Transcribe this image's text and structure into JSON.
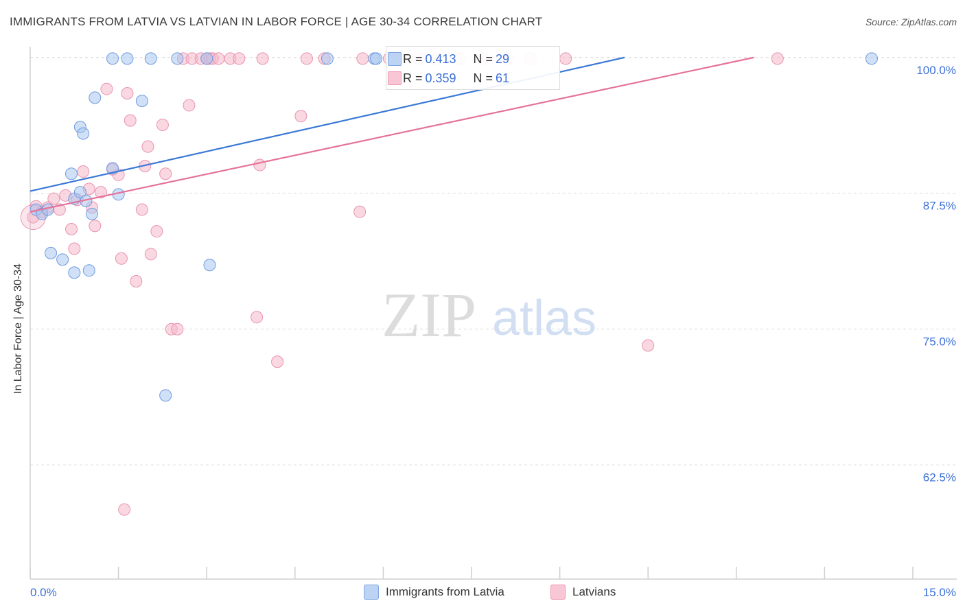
{
  "chart_data": {
    "type": "scatter",
    "title": "IMMIGRANTS FROM LATVIA VS LATVIAN IN LABOR FORCE | AGE 30-34 CORRELATION CHART",
    "source": "Source: ZipAtlas.com",
    "ylabel": "In Labor Force | Age 30-34",
    "xlim": [
      0,
      15
    ],
    "ylim": [
      52,
      101.5
    ],
    "x_tick_labels": {
      "min": "0.0%",
      "max": "15.0%"
    },
    "y_ticks": [
      {
        "value": 100,
        "label": "100.0%"
      },
      {
        "value": 87.5,
        "label": "87.5%"
      },
      {
        "value": 75,
        "label": "75.0%"
      },
      {
        "value": 62.5,
        "label": "62.5%"
      }
    ],
    "watermark": {
      "zip": "ZIP",
      "atlas": "atlas"
    },
    "colors": {
      "blue": "#3a78d6",
      "pink": "#e5729a",
      "blue_fill": "#aac6ef",
      "pink_fill": "#f5b8cb",
      "axis_label": "#3a6fd8"
    },
    "legend": {
      "position": "top-center",
      "entries": [
        {
          "r_label": "R = ",
          "r_value": "0.413",
          "n_label": "N = ",
          "n_value": "29"
        },
        {
          "r_label": "R = ",
          "r_value": "0.359",
          "n_label": "N = ",
          "n_value": "61"
        }
      ]
    },
    "series": [
      {
        "name": "Immigrants from Latvia",
        "color": "#3a78d6",
        "trend": {
          "x": [
            0,
            10.1
          ],
          "y": [
            87.7,
            100
          ]
        },
        "points": [
          [
            0.1,
            86.0
          ],
          [
            0.2,
            85.6
          ],
          [
            0.3,
            86.0
          ],
          [
            0.35,
            82.0
          ],
          [
            0.55,
            81.4
          ],
          [
            0.7,
            89.3
          ],
          [
            0.75,
            87.0
          ],
          [
            0.85,
            87.6
          ],
          [
            0.75,
            80.2
          ],
          [
            0.85,
            93.6
          ],
          [
            0.9,
            93.0
          ],
          [
            0.95,
            86.8
          ],
          [
            1.0,
            80.4
          ],
          [
            1.05,
            85.6
          ],
          [
            1.1,
            96.3
          ],
          [
            1.4,
            99.9
          ],
          [
            1.4,
            89.8
          ],
          [
            1.5,
            87.4
          ],
          [
            1.65,
            99.9
          ],
          [
            1.9,
            96.0
          ],
          [
            2.05,
            99.9
          ],
          [
            2.3,
            68.9
          ],
          [
            2.5,
            99.9
          ],
          [
            3.0,
            99.9
          ],
          [
            3.05,
            80.9
          ],
          [
            5.05,
            99.9
          ],
          [
            5.85,
            99.9
          ],
          [
            5.88,
            99.9
          ],
          [
            14.3,
            99.9
          ]
        ]
      },
      {
        "name": "Latvians",
        "color": "#e5729a",
        "trend": {
          "x": [
            0,
            12.3
          ],
          "y": [
            85.8,
            100
          ]
        },
        "points": [
          [
            0.05,
            85.3
          ],
          [
            0.1,
            86.3
          ],
          [
            0.2,
            85.8
          ],
          [
            0.3,
            86.2
          ],
          [
            0.4,
            87.0
          ],
          [
            0.5,
            86.0
          ],
          [
            0.6,
            87.3
          ],
          [
            0.7,
            84.2
          ],
          [
            0.75,
            82.4
          ],
          [
            0.8,
            86.9
          ],
          [
            0.9,
            89.5
          ],
          [
            1.0,
            87.9
          ],
          [
            1.05,
            86.2
          ],
          [
            1.1,
            84.5
          ],
          [
            1.2,
            87.6
          ],
          [
            1.3,
            97.1
          ],
          [
            1.4,
            89.7
          ],
          [
            1.5,
            89.2
          ],
          [
            1.55,
            81.5
          ],
          [
            1.6,
            58.4
          ],
          [
            1.65,
            96.7
          ],
          [
            1.7,
            94.2
          ],
          [
            1.8,
            79.4
          ],
          [
            1.9,
            86.0
          ],
          [
            1.95,
            90.0
          ],
          [
            2.0,
            91.8
          ],
          [
            2.05,
            81.9
          ],
          [
            2.15,
            84.0
          ],
          [
            2.25,
            93.8
          ],
          [
            2.3,
            89.3
          ],
          [
            2.4,
            75.0
          ],
          [
            2.5,
            75.0
          ],
          [
            2.6,
            99.9
          ],
          [
            2.7,
            95.6
          ],
          [
            2.75,
            99.9
          ],
          [
            2.9,
            99.9
          ],
          [
            3.0,
            99.9
          ],
          [
            3.05,
            99.9
          ],
          [
            3.1,
            99.9
          ],
          [
            3.2,
            99.9
          ],
          [
            3.4,
            99.9
          ],
          [
            3.55,
            99.9
          ],
          [
            3.95,
            99.9
          ],
          [
            3.9,
            90.1
          ],
          [
            3.85,
            76.1
          ],
          [
            4.2,
            72.0
          ],
          [
            4.6,
            94.6
          ],
          [
            4.7,
            99.9
          ],
          [
            5.0,
            99.9
          ],
          [
            5.6,
            85.8
          ],
          [
            5.65,
            99.9
          ],
          [
            6.1,
            99.9
          ],
          [
            6.6,
            99.9
          ],
          [
            6.9,
            99.9
          ],
          [
            7.3,
            99.9
          ],
          [
            7.7,
            99.9
          ],
          [
            8.1,
            99.9
          ],
          [
            8.5,
            99.9
          ],
          [
            9.1,
            99.9
          ],
          [
            10.5,
            73.5
          ],
          [
            12.7,
            99.9
          ]
        ]
      }
    ]
  },
  "bottom_legend": [
    "Immigrants from Latvia",
    "Latvians"
  ]
}
